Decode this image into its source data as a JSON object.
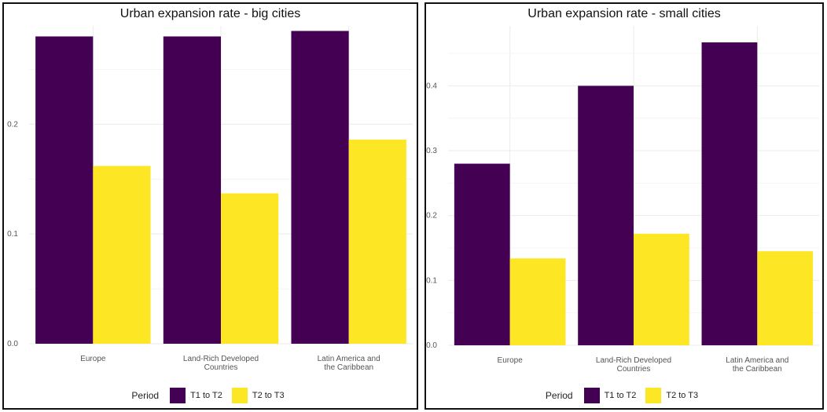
{
  "colors": {
    "t1_t2": "#440154",
    "t2_t3": "#FDE725",
    "grid": "#ebebeb"
  },
  "chart_data": [
    {
      "type": "bar",
      "title": "Urban expansion rate - big cities",
      "categories": [
        "Europe",
        "Land-Rich Developed Countries",
        "Latin America and the Caribbean"
      ],
      "category_lines": [
        [
          "Europe"
        ],
        [
          "Land-Rich Developed",
          "Countries"
        ],
        [
          "Latin America and",
          "the Caribbean"
        ]
      ],
      "series": [
        {
          "name": "T1 to T2",
          "values": [
            0.28,
            0.28,
            0.285
          ]
        },
        {
          "name": "T2 to T3",
          "values": [
            0.162,
            0.137,
            0.186
          ]
        }
      ],
      "yticks": [
        "0.0",
        "0.1",
        "0.2"
      ],
      "ylim": [
        0,
        0.2896
      ],
      "xlabel": "",
      "ylabel": "",
      "grid": true,
      "legend": {
        "title": "Period",
        "position": "bottom"
      }
    },
    {
      "type": "bar",
      "title": "Urban expansion rate - small cities",
      "categories": [
        "Europe",
        "Land-Rich Developed Countries",
        "Latin America and the Caribbean"
      ],
      "category_lines": [
        [
          "Europe"
        ],
        [
          "Land-Rich Developed",
          "Countries"
        ],
        [
          "Latin America and",
          "the Caribbean"
        ]
      ],
      "series": [
        {
          "name": "T1 to T2",
          "values": [
            0.28,
            0.4,
            0.467
          ]
        },
        {
          "name": "T2 to T3",
          "values": [
            0.134,
            0.172,
            0.145
          ]
        }
      ],
      "yticks": [
        "0.0",
        "0.1",
        "0.2",
        "0.3",
        "0.4"
      ],
      "ylim": [
        0,
        0.4924
      ],
      "xlabel": "",
      "ylabel": "",
      "grid": true,
      "legend": {
        "title": "Period",
        "position": "bottom"
      }
    }
  ]
}
